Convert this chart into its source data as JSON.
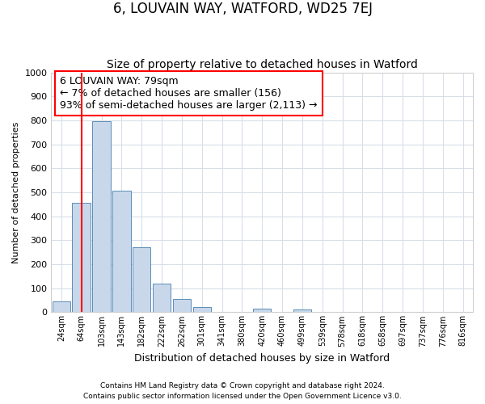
{
  "title": "6, LOUVAIN WAY, WATFORD, WD25 7EJ",
  "subtitle": "Size of property relative to detached houses in Watford",
  "xlabel": "Distribution of detached houses by size in Watford",
  "ylabel": "Number of detached properties",
  "footer_line1": "Contains HM Land Registry data © Crown copyright and database right 2024.",
  "footer_line2": "Contains public sector information licensed under the Open Government Licence v3.0.",
  "bar_labels": [
    "24sqm",
    "64sqm",
    "103sqm",
    "143sqm",
    "182sqm",
    "222sqm",
    "262sqm",
    "301sqm",
    "341sqm",
    "380sqm",
    "420sqm",
    "460sqm",
    "499sqm",
    "539sqm",
    "578sqm",
    "618sqm",
    "658sqm",
    "697sqm",
    "737sqm",
    "776sqm",
    "816sqm"
  ],
  "bar_values": [
    46,
    455,
    795,
    505,
    270,
    120,
    55,
    20,
    0,
    0,
    15,
    0,
    10,
    0,
    0,
    0,
    0,
    0,
    0,
    0,
    0
  ],
  "bar_color": "#c8d8ea",
  "bar_edge_color": "#5b8db8",
  "red_line_x": 1.0,
  "annotation_line1": "6 LOUVAIN WAY: 79sqm",
  "annotation_line2": "← 7% of detached houses are smaller (156)",
  "annotation_line3": "93% of semi-detached houses are larger (2,113) →",
  "ylim": [
    0,
    1000
  ],
  "yticks": [
    0,
    100,
    200,
    300,
    400,
    500,
    600,
    700,
    800,
    900,
    1000
  ],
  "background_color": "#ffffff",
  "plot_bg_color": "#ffffff",
  "grid_color": "#d8dfe8",
  "title_fontsize": 12,
  "subtitle_fontsize": 10,
  "annotation_fontsize": 9
}
